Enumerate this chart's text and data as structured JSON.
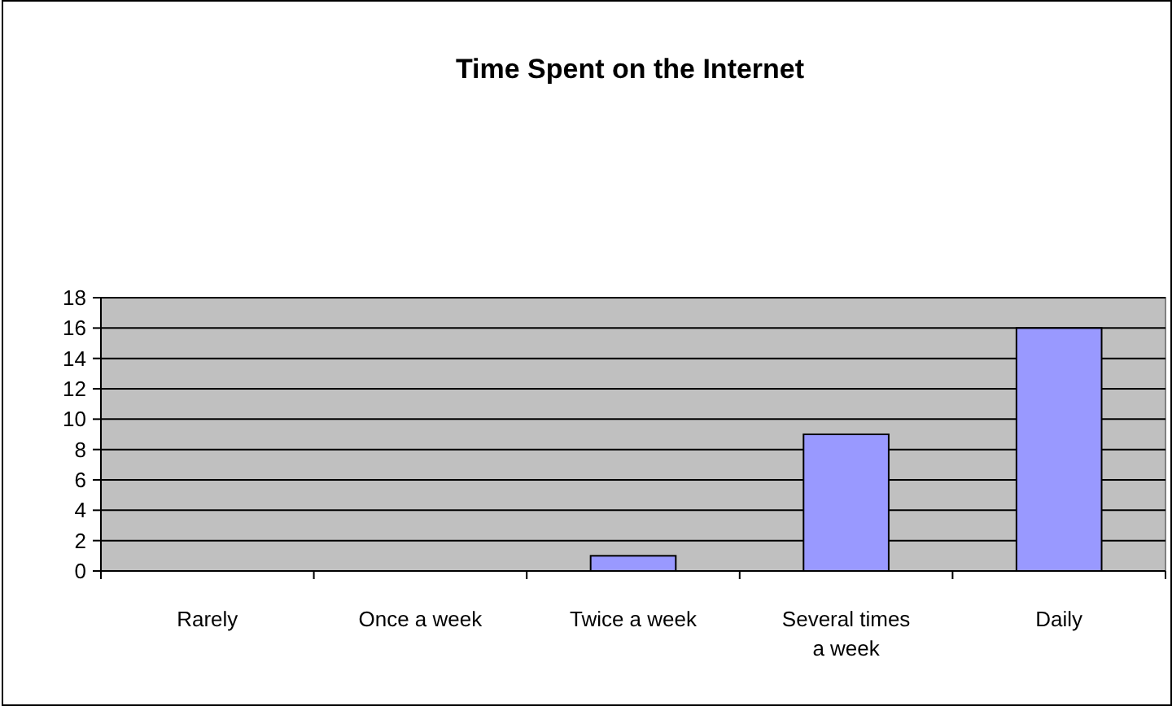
{
  "chart_data": {
    "type": "bar",
    "title": "Time Spent on the Internet",
    "categories": [
      "Rarely",
      "Once a week",
      "Twice a week",
      "Several times a week",
      "Daily"
    ],
    "values": [
      0,
      0,
      1,
      9,
      16
    ],
    "color": "#9999ff",
    "ylim": [
      0,
      18
    ],
    "yticks": [
      0,
      2,
      4,
      6,
      8,
      10,
      12,
      14,
      16,
      18
    ],
    "grid": "y"
  }
}
